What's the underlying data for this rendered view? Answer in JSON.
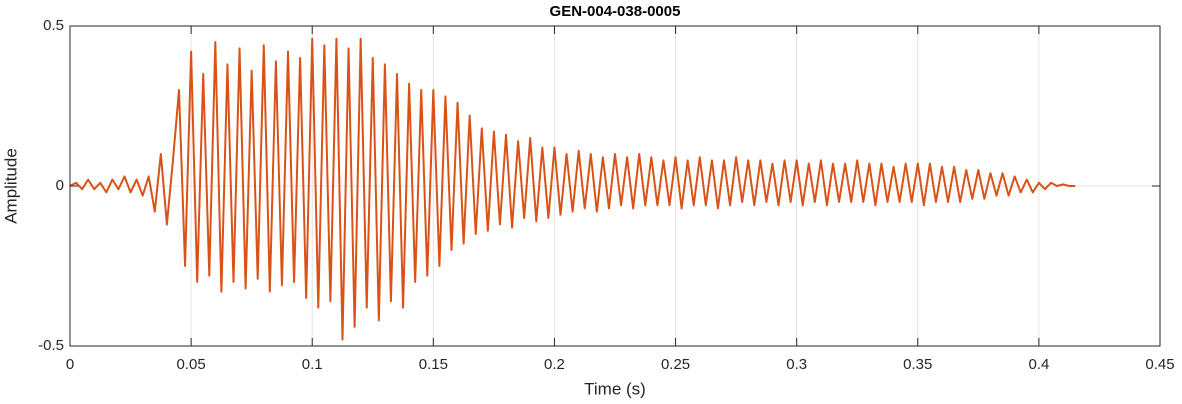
{
  "chart_data": {
    "type": "line",
    "title": "GEN-004-038-0005",
    "x_label": "Time (s)",
    "y_label": "Amplitude",
    "color": "#d95319",
    "grid": true,
    "xlim": [
      0,
      0.45
    ],
    "ylim": [
      -0.5,
      0.5
    ],
    "xticks": [
      0,
      0.05,
      0.1,
      0.15,
      0.2,
      0.25,
      0.3,
      0.35,
      0.4,
      0.45
    ],
    "yticks": [
      -0.5,
      0,
      0.5
    ],
    "x": [
      0,
      0.0025,
      0.005,
      0.0075,
      0.01,
      0.0125,
      0.015,
      0.0175,
      0.02,
      0.0225,
      0.025,
      0.0275,
      0.03,
      0.0325,
      0.035,
      0.0375,
      0.04,
      0.0425,
      0.045,
      0.0475,
      0.05,
      0.0525,
      0.055,
      0.0575,
      0.06,
      0.0625,
      0.065,
      0.0675,
      0.07,
      0.0725,
      0.075,
      0.0775,
      0.08,
      0.0825,
      0.085,
      0.0875,
      0.09,
      0.0925,
      0.095,
      0.0975,
      0.1,
      0.1025,
      0.105,
      0.1075,
      0.11,
      0.1125,
      0.115,
      0.1175,
      0.12,
      0.1225,
      0.125,
      0.1275,
      0.13,
      0.1325,
      0.135,
      0.1375,
      0.14,
      0.1425,
      0.145,
      0.1475,
      0.15,
      0.1525,
      0.155,
      0.1575,
      0.16,
      0.1625,
      0.165,
      0.1675,
      0.17,
      0.1725,
      0.175,
      0.1775,
      0.18,
      0.1825,
      0.185,
      0.1875,
      0.19,
      0.1925,
      0.195,
      0.1975,
      0.2,
      0.2025,
      0.205,
      0.2075,
      0.21,
      0.2125,
      0.215,
      0.2175,
      0.22,
      0.2225,
      0.225,
      0.2275,
      0.23,
      0.2325,
      0.235,
      0.2375,
      0.24,
      0.2425,
      0.245,
      0.2475,
      0.25,
      0.2525,
      0.255,
      0.2575,
      0.26,
      0.2625,
      0.265,
      0.2675,
      0.27,
      0.2725,
      0.275,
      0.2775,
      0.28,
      0.2825,
      0.285,
      0.2875,
      0.29,
      0.2925,
      0.295,
      0.2975,
      0.3,
      0.3025,
      0.305,
      0.3075,
      0.31,
      0.3125,
      0.315,
      0.3175,
      0.32,
      0.3225,
      0.325,
      0.3275,
      0.33,
      0.3325,
      0.335,
      0.3375,
      0.34,
      0.3425,
      0.345,
      0.3475,
      0.35,
      0.3525,
      0.355,
      0.3575,
      0.36,
      0.3625,
      0.365,
      0.3675,
      0.37,
      0.3725,
      0.375,
      0.3775,
      0.38,
      0.3825,
      0.385,
      0.3875,
      0.39,
      0.3925,
      0.395,
      0.3975,
      0.4,
      0.4025,
      0.405,
      0.4075,
      0.41,
      0.4125,
      0.415
    ],
    "values": [
      0,
      0.01,
      -0.01,
      0.02,
      -0.01,
      0.01,
      -0.02,
      0.02,
      -0.01,
      0.03,
      -0.02,
      0.02,
      -0.03,
      0.03,
      -0.08,
      0.1,
      -0.12,
      0.08,
      0.3,
      -0.25,
      0.42,
      -0.3,
      0.35,
      -0.28,
      0.45,
      -0.33,
      0.38,
      -0.3,
      0.43,
      -0.32,
      0.36,
      -0.29,
      0.44,
      -0.33,
      0.39,
      -0.31,
      0.42,
      -0.3,
      0.4,
      -0.35,
      0.46,
      -0.38,
      0.44,
      -0.36,
      0.46,
      -0.48,
      0.43,
      -0.44,
      0.46,
      -0.38,
      0.4,
      -0.42,
      0.38,
      -0.36,
      0.35,
      -0.38,
      0.32,
      -0.3,
      0.3,
      -0.28,
      0.3,
      -0.25,
      0.28,
      -0.2,
      0.26,
      -0.18,
      0.22,
      -0.15,
      0.18,
      -0.14,
      0.17,
      -0.12,
      0.16,
      -0.13,
      0.14,
      -0.1,
      0.15,
      -0.11,
      0.12,
      -0.1,
      0.12,
      -0.09,
      0.1,
      -0.08,
      0.11,
      -0.07,
      0.1,
      -0.08,
      0.09,
      -0.07,
      0.1,
      -0.06,
      0.09,
      -0.07,
      0.1,
      -0.06,
      0.09,
      -0.06,
      0.08,
      -0.06,
      0.09,
      -0.07,
      0.08,
      -0.06,
      0.09,
      -0.06,
      0.08,
      -0.07,
      0.08,
      -0.06,
      0.09,
      -0.05,
      0.08,
      -0.06,
      0.08,
      -0.05,
      0.07,
      -0.06,
      0.08,
      -0.05,
      0.08,
      -0.06,
      0.07,
      -0.05,
      0.08,
      -0.06,
      0.07,
      -0.05,
      0.07,
      -0.05,
      0.08,
      -0.05,
      0.07,
      -0.06,
      0.07,
      -0.05,
      0.06,
      -0.05,
      0.07,
      -0.05,
      0.07,
      -0.06,
      0.07,
      -0.05,
      0.06,
      -0.05,
      0.06,
      -0.05,
      0.05,
      -0.04,
      0.05,
      -0.04,
      0.04,
      -0.03,
      0.04,
      -0.03,
      0.03,
      -0.02,
      0.02,
      -0.02,
      0.01,
      -0.01,
      0.01,
      0,
      0.005,
      0,
      0
    ]
  }
}
